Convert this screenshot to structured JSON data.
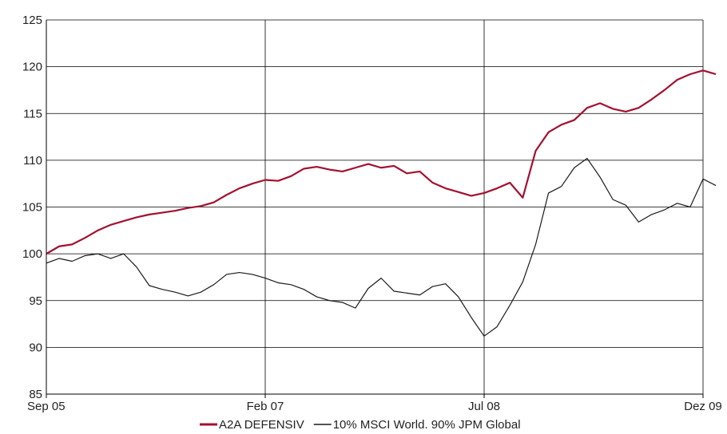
{
  "chart_data": {
    "type": "line",
    "title": "",
    "xlabel": "",
    "ylabel": "",
    "xlim": [
      "2005-09",
      "2009-12"
    ],
    "ylim": [
      85,
      125
    ],
    "y_ticks": [
      85,
      90,
      95,
      100,
      105,
      110,
      115,
      120,
      125
    ],
    "x_ticks": [
      {
        "label": "Sep 05",
        "date": "2005-09"
      },
      {
        "label": "Feb 07",
        "date": "2007-02"
      },
      {
        "label": "Jul 08",
        "date": "2008-07"
      },
      {
        "label": "Dez 09",
        "date": "2009-12"
      }
    ],
    "grid": true,
    "legend_position": "bottom-center",
    "series": [
      {
        "name": "A2A DEFENSIV",
        "color": "#a3102f",
        "points": [
          [
            "2005-09",
            100.0
          ],
          [
            "2005-10",
            100.8
          ],
          [
            "2005-11",
            101.0
          ],
          [
            "2005-12",
            101.7
          ],
          [
            "2006-01",
            102.5
          ],
          [
            "2006-02",
            103.1
          ],
          [
            "2006-03",
            103.5
          ],
          [
            "2006-04",
            103.9
          ],
          [
            "2006-05",
            104.2
          ],
          [
            "2006-06",
            104.4
          ],
          [
            "2006-07",
            104.6
          ],
          [
            "2006-08",
            104.9
          ],
          [
            "2006-09",
            105.1
          ],
          [
            "2006-10",
            105.5
          ],
          [
            "2006-11",
            106.3
          ],
          [
            "2006-12",
            107.0
          ],
          [
            "2007-01",
            107.5
          ],
          [
            "2007-02",
            107.9
          ],
          [
            "2007-03",
            107.8
          ],
          [
            "2007-04",
            108.3
          ],
          [
            "2007-05",
            109.1
          ],
          [
            "2007-06",
            109.3
          ],
          [
            "2007-07",
            109.0
          ],
          [
            "2007-08",
            108.8
          ],
          [
            "2007-09",
            109.2
          ],
          [
            "2007-10",
            109.6
          ],
          [
            "2007-11",
            109.2
          ],
          [
            "2007-12",
            109.4
          ],
          [
            "2008-01",
            108.6
          ],
          [
            "2008-02",
            108.8
          ],
          [
            "2008-03",
            107.6
          ],
          [
            "2008-04",
            107.0
          ],
          [
            "2008-05",
            106.6
          ],
          [
            "2008-06",
            106.2
          ],
          [
            "2008-07",
            106.5
          ],
          [
            "2008-08",
            107.0
          ],
          [
            "2008-09",
            107.6
          ],
          [
            "2008-10",
            106.0
          ],
          [
            "2008-11",
            111.0
          ],
          [
            "2008-12",
            113.0
          ],
          [
            "2009-01",
            113.8
          ],
          [
            "2009-02",
            114.3
          ],
          [
            "2009-03",
            115.6
          ],
          [
            "2009-04",
            116.1
          ],
          [
            "2009-05",
            115.5
          ],
          [
            "2009-06",
            115.2
          ],
          [
            "2009-07",
            115.6
          ],
          [
            "2009-08",
            116.5
          ],
          [
            "2009-09",
            117.5
          ],
          [
            "2009-10",
            118.6
          ],
          [
            "2009-11",
            119.2
          ],
          [
            "2009-12",
            119.6
          ],
          [
            "2010-01",
            119.2
          ]
        ]
      },
      {
        "name": "10% MSCI World. 90% JPM Global",
        "color": "#1a1a1a",
        "points": [
          [
            "2005-09",
            99.0
          ],
          [
            "2005-10",
            99.5
          ],
          [
            "2005-11",
            99.2
          ],
          [
            "2005-12",
            99.8
          ],
          [
            "2006-01",
            100.0
          ],
          [
            "2006-02",
            99.5
          ],
          [
            "2006-03",
            100.0
          ],
          [
            "2006-04",
            98.6
          ],
          [
            "2006-05",
            96.6
          ],
          [
            "2006-06",
            96.2
          ],
          [
            "2006-07",
            95.9
          ],
          [
            "2006-08",
            95.5
          ],
          [
            "2006-09",
            95.9
          ],
          [
            "2006-10",
            96.7
          ],
          [
            "2006-11",
            97.8
          ],
          [
            "2006-12",
            98.0
          ],
          [
            "2007-01",
            97.8
          ],
          [
            "2007-02",
            97.4
          ],
          [
            "2007-03",
            96.9
          ],
          [
            "2007-04",
            96.7
          ],
          [
            "2007-05",
            96.2
          ],
          [
            "2007-06",
            95.4
          ],
          [
            "2007-07",
            95.0
          ],
          [
            "2007-08",
            94.8
          ],
          [
            "2007-09",
            94.2
          ],
          [
            "2007-10",
            96.3
          ],
          [
            "2007-11",
            97.4
          ],
          [
            "2007-12",
            96.0
          ],
          [
            "2008-01",
            95.8
          ],
          [
            "2008-02",
            95.6
          ],
          [
            "2008-03",
            96.5
          ],
          [
            "2008-04",
            96.8
          ],
          [
            "2008-05",
            95.4
          ],
          [
            "2008-06",
            93.2
          ],
          [
            "2008-07",
            91.2
          ],
          [
            "2008-08",
            92.2
          ],
          [
            "2008-09",
            94.5
          ],
          [
            "2008-10",
            97.0
          ],
          [
            "2008-11",
            101.0
          ],
          [
            "2008-12",
            106.5
          ],
          [
            "2009-01",
            107.2
          ],
          [
            "2009-02",
            109.2
          ],
          [
            "2009-03",
            110.2
          ],
          [
            "2009-04",
            108.2
          ],
          [
            "2009-05",
            105.8
          ],
          [
            "2009-06",
            105.2
          ],
          [
            "2009-07",
            103.4
          ],
          [
            "2009-08",
            104.2
          ],
          [
            "2009-09",
            104.7
          ],
          [
            "2009-10",
            105.4
          ],
          [
            "2009-11",
            105.0
          ],
          [
            "2009-12",
            108.0
          ],
          [
            "2010-01",
            107.3
          ]
        ]
      }
    ]
  }
}
